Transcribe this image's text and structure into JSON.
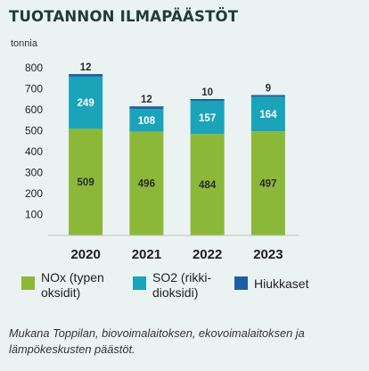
{
  "title": "TUOTANNON ILMAPÄÄSTÖT",
  "chart_data": {
    "type": "bar",
    "stacked": true,
    "unit_label": "tonnia",
    "categories": [
      "2020",
      "2021",
      "2022",
      "2023"
    ],
    "series": [
      {
        "name": "NOx (typen\noksidit)",
        "color": "#8cb83a",
        "values": [
          509,
          496,
          484,
          497
        ]
      },
      {
        "name": "SO2 (rikki-\ndioksidi)",
        "color": "#1ba3b9",
        "values": [
          249,
          108,
          157,
          164
        ]
      },
      {
        "name": "Hiukkaset",
        "color": "#1d5fa6",
        "values": [
          12,
          12,
          10,
          9
        ]
      }
    ],
    "ylim": [
      0,
      800
    ],
    "yticks": [
      100,
      200,
      300,
      400,
      500,
      600,
      700,
      800
    ],
    "grid": false,
    "legend_position": "bottom"
  },
  "footnote": "Mukana Toppilan, biovoimalaitoksen, ekovoimalaitoksen ja lämpökeskusten päästöt."
}
